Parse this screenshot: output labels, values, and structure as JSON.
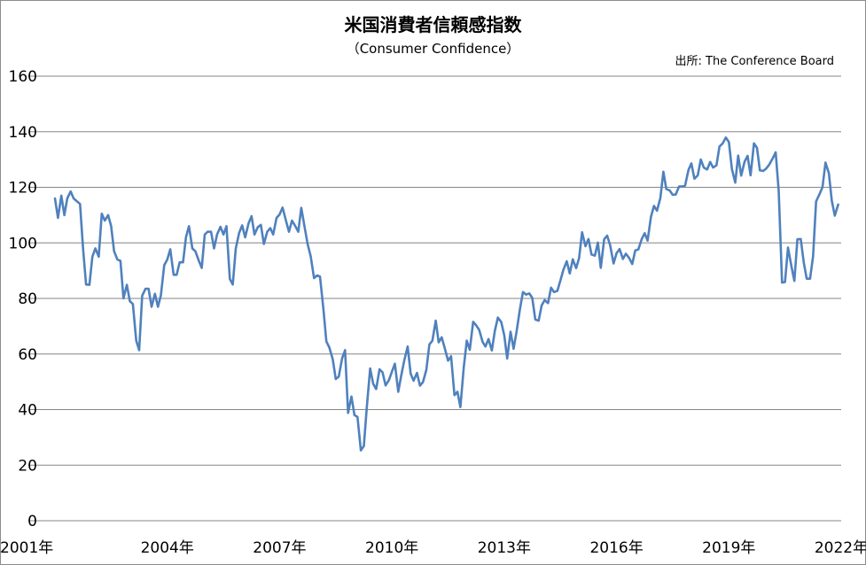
{
  "chart_data": {
    "type": "line",
    "title": "米国消費者信頼感指数",
    "subtitle": "（Consumer Confidence）",
    "source": "出所: The Conference Board",
    "x_tick_labels": [
      "2001年",
      "2004年",
      "2007年",
      "2010年",
      "2013年",
      "2016年",
      "2019年",
      "2022年"
    ],
    "x_tick_years": [
      2001,
      2004,
      2007,
      2010,
      2013,
      2016,
      2019,
      2022
    ],
    "y_ticks": [
      0,
      20,
      40,
      60,
      80,
      100,
      120,
      140,
      160
    ],
    "ylim": [
      0,
      160
    ],
    "xlim": [
      2001.0,
      2022.0
    ],
    "grid": true,
    "line_color": "#4f81bd",
    "series": [
      {
        "x": [
          2001.0,
          2001.08,
          2001.17,
          2001.25,
          2001.33,
          2001.42,
          2001.5,
          2001.67,
          2001.75,
          2001.83,
          2001.92,
          2002.0,
          2002.08,
          2002.17,
          2002.25,
          2002.33,
          2002.42,
          2002.5,
          2002.58,
          2002.67,
          2002.75,
          2002.83,
          2002.92,
          2003.0,
          2003.08,
          2003.17,
          2003.25,
          2003.33,
          2003.42,
          2003.5,
          2003.58,
          2003.67,
          2003.75,
          2003.83,
          2003.92,
          2004.0,
          2004.08,
          2004.17,
          2004.25,
          2004.33,
          2004.42,
          2004.5,
          2004.58,
          2004.67,
          2004.75,
          2004.83,
          2004.92,
          2005.0,
          2005.08,
          2005.17,
          2005.25,
          2005.33,
          2005.42,
          2005.5,
          2005.58,
          2005.67,
          2005.75,
          2005.83,
          2005.92,
          2006.0,
          2006.08,
          2006.17,
          2006.25,
          2006.33,
          2006.42,
          2006.5,
          2006.58,
          2006.67,
          2006.75,
          2006.83,
          2006.92,
          2007.0,
          2007.08,
          2007.17,
          2007.25,
          2007.33,
          2007.42,
          2007.5,
          2007.58,
          2007.67,
          2007.75,
          2007.83,
          2007.92,
          2008.0,
          2008.08,
          2008.17,
          2008.25,
          2008.33,
          2008.42,
          2008.5,
          2008.58,
          2008.67,
          2008.75,
          2008.83,
          2008.92,
          2009.0,
          2009.08,
          2009.17,
          2009.25,
          2009.33,
          2009.42,
          2009.5,
          2009.58,
          2009.67,
          2009.75,
          2009.83,
          2009.92,
          2010.0,
          2010.08,
          2010.17,
          2010.25,
          2010.33,
          2010.42,
          2010.5,
          2010.58,
          2010.67,
          2010.75,
          2010.83,
          2010.92,
          2011.0,
          2011.08,
          2011.17,
          2011.25,
          2011.33,
          2011.42,
          2011.5,
          2011.58,
          2011.67,
          2011.75,
          2011.83,
          2011.92,
          2012.0,
          2012.08,
          2012.17,
          2012.25,
          2012.33,
          2012.42,
          2012.5,
          2012.58,
          2012.67,
          2012.75,
          2012.83,
          2012.92,
          2013.0,
          2013.08,
          2013.17,
          2013.25,
          2013.33,
          2013.42,
          2013.5,
          2013.58,
          2013.67,
          2013.75,
          2013.83,
          2013.92,
          2014.0,
          2014.08,
          2014.17,
          2014.25,
          2014.33,
          2014.42,
          2014.5,
          2014.58,
          2014.67,
          2014.75,
          2014.83,
          2014.92,
          2015.0,
          2015.08,
          2015.17,
          2015.25,
          2015.33,
          2015.42,
          2015.5,
          2015.58,
          2015.67,
          2015.75,
          2015.83,
          2015.92,
          2016.0,
          2016.08,
          2016.17,
          2016.25,
          2016.33,
          2016.42,
          2016.5,
          2016.58,
          2016.67,
          2016.75,
          2016.83,
          2016.92,
          2017.0,
          2017.08,
          2017.17,
          2017.25,
          2017.33,
          2017.42,
          2017.5,
          2017.58,
          2017.67,
          2017.75,
          2017.83,
          2017.92,
          2018.0,
          2018.08,
          2018.17,
          2018.25,
          2018.33,
          2018.42,
          2018.5,
          2018.58,
          2018.67,
          2018.75,
          2018.83,
          2018.92,
          2019.0,
          2019.08,
          2019.17,
          2019.25,
          2019.33,
          2019.42,
          2019.5,
          2019.58,
          2019.67,
          2019.75,
          2019.83,
          2019.92,
          2020.0,
          2020.08,
          2020.17,
          2020.25,
          2020.33,
          2020.42,
          2020.5,
          2020.58,
          2020.67,
          2020.75,
          2020.83,
          2020.92,
          2021.0,
          2021.08,
          2021.17,
          2021.25,
          2021.33,
          2021.42,
          2021.5,
          2021.58,
          2021.67,
          2021.75,
          2021.83,
          2021.92
        ],
        "y": [
          116,
          109,
          117,
          110,
          116,
          118.5,
          116,
          114,
          98,
          85,
          84.9,
          95,
          98,
          95,
          110.5,
          108,
          110,
          106,
          97,
          94,
          93.5,
          80,
          84.9,
          79,
          78,
          64.8,
          61.4,
          81,
          83.5,
          83.5,
          77,
          81.7,
          77,
          81.1,
          92,
          94,
          97.7,
          88.5,
          88.5,
          93,
          93,
          102,
          106,
          98,
          97,
          94,
          91,
          103,
          104,
          104,
          98,
          103,
          105.8,
          103,
          106,
          87,
          85,
          98,
          103.6,
          106.3,
          102,
          107,
          109.6,
          103,
          105.7,
          106.5,
          99.6,
          104,
          105.3,
          103,
          109,
          110.2,
          112.7,
          108,
          104,
          108,
          106,
          104,
          112.6,
          105.6,
          99.5,
          95.2,
          87.3,
          88.3,
          87.9,
          76.4,
          64.5,
          62.3,
          58.1,
          51,
          51.9,
          58.5,
          61.4,
          38.8,
          44.7,
          38,
          37.4,
          25.3,
          26.9,
          40.8,
          54.8,
          49.3,
          47.4,
          54.5,
          53.4,
          48.7,
          50.6,
          53.6,
          56.5,
          46.4,
          52.3,
          57.7,
          62.7,
          52.9,
          50.4,
          53.2,
          48.6,
          49.9,
          54.3,
          63.4,
          64.8,
          72,
          64.2,
          66,
          61.7,
          57.6,
          59.2,
          45.2,
          46.4,
          40.9,
          55.2,
          64.8,
          61.5,
          71.6,
          70.3,
          68.7,
          64.4,
          62.7,
          65.4,
          61.3,
          68.4,
          73.1,
          71.5,
          66.7,
          58.4,
          68,
          61.9,
          68.1,
          76.2,
          82.3,
          81.4,
          81.8,
          80.2,
          72.4,
          72,
          77.5,
          79.4,
          78.3,
          83.9,
          82.3,
          82.7,
          86.4,
          90.3,
          93.4,
          89,
          94.1,
          90.9,
          94.5,
          103.8,
          98.8,
          101.4,
          95.8,
          95.4,
          100.1,
          91,
          101.3,
          102.6,
          99.1,
          92.6,
          96.3,
          97.8,
          94.2,
          96.1,
          94.7,
          92.4,
          97.3,
          97.6,
          101.3,
          103.5,
          100.8,
          109.4,
          113.3,
          111.6,
          116.1,
          125.6,
          119.4,
          118.9,
          117.3,
          117.4,
          120.3,
          120.3,
          120.6,
          126.2,
          128.6,
          123.1,
          124.3,
          130,
          127.1,
          126.4,
          129.1,
          127.1,
          127.9,
          134.7,
          135.7,
          137.9,
          136.3,
          126.6,
          121.7,
          131.4,
          124.2,
          129.2,
          131.3,
          124.3,
          135.8,
          134.2,
          126.1,
          125.9,
          126.8,
          128.2,
          130.4,
          132.6,
          118.8,
          85.7,
          85.9,
          98.3,
          91.7,
          86.3,
          101.3,
          101.4,
          92.9,
          87.1,
          87.1,
          95.2,
          114.9,
          117.5,
          120,
          128.9,
          125.1,
          115.2,
          109.8,
          113.8
        ]
      }
    ]
  }
}
